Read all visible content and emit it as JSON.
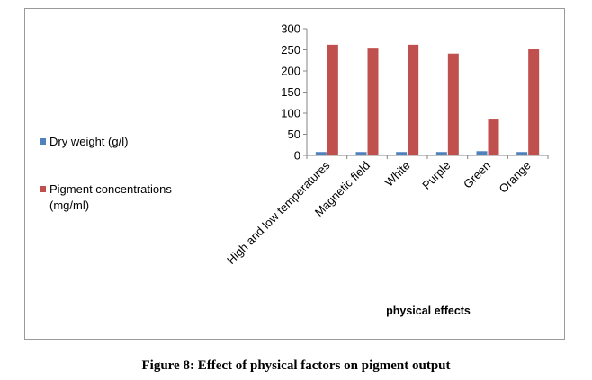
{
  "figure": {
    "caption": "Figure 8: Effect of physical factors on pigment output"
  },
  "chart_data": {
    "type": "bar",
    "categories": [
      "High and low temperatures",
      "Magnetic field",
      "White",
      "Purple",
      "Green",
      "Orange"
    ],
    "series": [
      {
        "name": "Dry weight (g/l)",
        "color": "#4f81bd",
        "values": [
          8,
          8,
          8,
          8,
          10,
          8
        ]
      },
      {
        "name": "Pigment concentrations (mg/ml)",
        "color": "#c0504d",
        "values": [
          262,
          255,
          262,
          241,
          85,
          251
        ]
      }
    ],
    "xlabel": "physical effects",
    "ylabel": "",
    "ylim": [
      0,
      300
    ],
    "yticks": [
      0,
      50,
      100,
      150,
      200,
      250,
      300
    ],
    "legend_position": "left",
    "grid": false
  },
  "legend": {
    "dry_weight": "Dry weight (g/l)",
    "pigment_line1": "Pigment concentrations",
    "pigment_line2": "(mg/ml)"
  }
}
